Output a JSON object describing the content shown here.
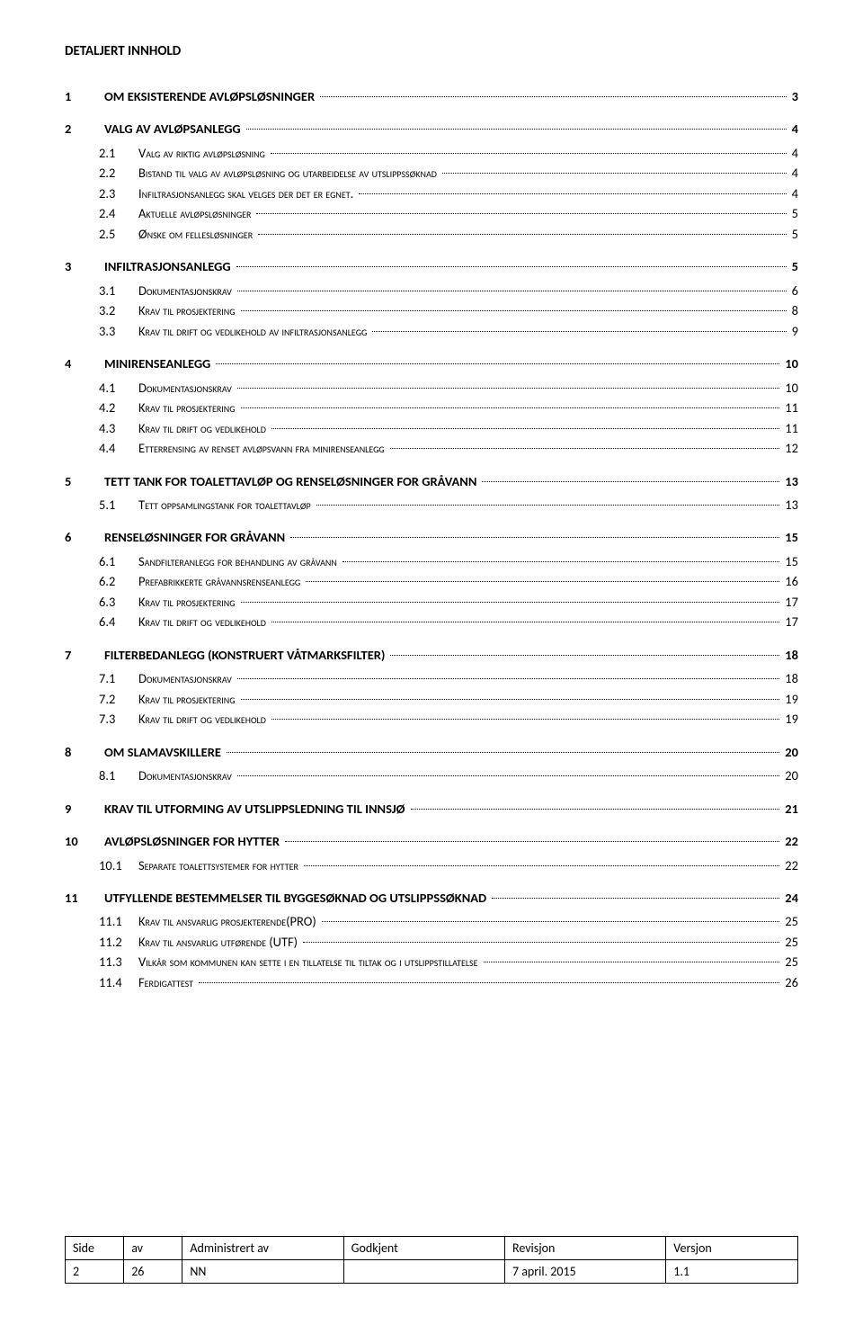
{
  "heading": "DETALJERT INNHOLD",
  "toc": [
    {
      "level": 1,
      "num": "1",
      "title": "OM EKSISTERENDE AVLØPSLØSNINGER",
      "page": "3"
    },
    {
      "level": 1,
      "num": "2",
      "title": "VALG AV AVLØPSANLEGG",
      "page": "4"
    },
    {
      "level": 2,
      "num": "2.1",
      "title": "Valg av riktig avløpsløsning",
      "page": "4"
    },
    {
      "level": 2,
      "num": "2.2",
      "title": "Bistand til valg av avløpsløsning og utarbeidelse av utslippssøknad",
      "page": "4"
    },
    {
      "level": 2,
      "num": "2.3",
      "title": "Infiltrasjonsanlegg skal velges der det er egnet.",
      "page": "4"
    },
    {
      "level": 2,
      "num": "2.4",
      "title": "Aktuelle avløpsløsninger",
      "page": "5"
    },
    {
      "level": 2,
      "num": "2.5",
      "title": "Ønske om fellesløsninger",
      "page": "5"
    },
    {
      "level": 1,
      "num": "3",
      "title": "INFILTRASJONSANLEGG",
      "page": "5"
    },
    {
      "level": 2,
      "num": "3.1",
      "title": "Dokumentasjonskrav",
      "page": "6"
    },
    {
      "level": 2,
      "num": "3.2",
      "title": "Krav til prosjektering",
      "page": "8"
    },
    {
      "level": 2,
      "num": "3.3",
      "title": "Krav til drift og vedlikehold av infiltrasjonsanlegg",
      "page": "9"
    },
    {
      "level": 1,
      "num": "4",
      "title": "MINIRENSEANLEGG",
      "page": "10"
    },
    {
      "level": 2,
      "num": "4.1",
      "title": "Dokumentasjonskrav",
      "page": "10"
    },
    {
      "level": 2,
      "num": "4.2",
      "title": "Krav til prosjektering",
      "page": "11"
    },
    {
      "level": 2,
      "num": "4.3",
      "title": "Krav til drift og vedlikehold",
      "page": "11"
    },
    {
      "level": 2,
      "num": "4.4",
      "title": "Etterrensing av renset avløpsvann fra minirenseanlegg",
      "page": "12"
    },
    {
      "level": 1,
      "num": "5",
      "title": "TETT TANK FOR TOALETTAVLØP OG RENSELØSNINGER FOR GRÅVANN",
      "page": "13"
    },
    {
      "level": 2,
      "num": "5.1",
      "title": "Tett oppsamlingstank for toalettavløp",
      "page": "13"
    },
    {
      "level": 1,
      "num": "6",
      "title": "RENSELØSNINGER FOR GRÅVANN",
      "page": "15"
    },
    {
      "level": 2,
      "num": "6.1",
      "title": "Sandfilteranlegg for behandling av gråvann",
      "page": "15"
    },
    {
      "level": 2,
      "num": "6.2",
      "title": "Prefabrikkerte gråvannsrenseanlegg",
      "page": "16"
    },
    {
      "level": 2,
      "num": "6.3",
      "title": "Krav til prosjektering",
      "page": "17"
    },
    {
      "level": 2,
      "num": "6.4",
      "title": "Krav til drift og vedlikehold",
      "page": "17"
    },
    {
      "level": 1,
      "num": "7",
      "title": "FILTERBEDANLEGG (KONSTRUERT VÅTMARKSFILTER)",
      "page": "18"
    },
    {
      "level": 2,
      "num": "7.1",
      "title": "Dokumentasjonskrav",
      "page": "18"
    },
    {
      "level": 2,
      "num": "7.2",
      "title": "Krav til prosjektering",
      "page": "19"
    },
    {
      "level": 2,
      "num": "7.3",
      "title": "Krav til drift og vedlikehold",
      "page": "19"
    },
    {
      "level": 1,
      "num": "8",
      "title": "OM SLAMAVSKILLERE",
      "page": "20"
    },
    {
      "level": 2,
      "num": "8.1",
      "title": "Dokumentasjonskrav",
      "page": "20"
    },
    {
      "level": 1,
      "num": "9",
      "title": "KRAV TIL UTFORMING AV UTSLIPPSLEDNING TIL INNSJØ",
      "page": "21"
    },
    {
      "level": 1,
      "num": "10",
      "title": "AVLØPSLØSNINGER FOR HYTTER",
      "page": "22"
    },
    {
      "level": 2,
      "num": "10.1",
      "title": "Separate toalettsystemer for hytter",
      "page": "22"
    },
    {
      "level": 1,
      "num": "11",
      "title": "UTFYLLENDE BESTEMMELSER TIL BYGGESØKNAD OG UTSLIPPSSØKNAD",
      "page": "24"
    },
    {
      "level": 2,
      "num": "11.1",
      "title": "Krav til ansvarlig prosjekterende(PRO)",
      "page": "25"
    },
    {
      "level": 2,
      "num": "11.2",
      "title": "Krav til ansvarlig utførende (UTF)",
      "page": "25"
    },
    {
      "level": 2,
      "num": "11.3",
      "title": "Vilkår som kommunen kan sette i en tillatelse til tiltak og  i utslippstillatelse",
      "page": "25"
    },
    {
      "level": 2,
      "num": "11.4",
      "title": "Ferdigattest",
      "page": "26"
    }
  ],
  "footer": {
    "headers": [
      "Side",
      "av",
      "Administrert av",
      "Godkjent",
      "Revisjon",
      "Versjon"
    ],
    "values": [
      "2",
      "26",
      "NN",
      "",
      "7 april. 2015",
      "1.1"
    ],
    "col_widths_pct": [
      8,
      8,
      22,
      22,
      22,
      18
    ]
  }
}
